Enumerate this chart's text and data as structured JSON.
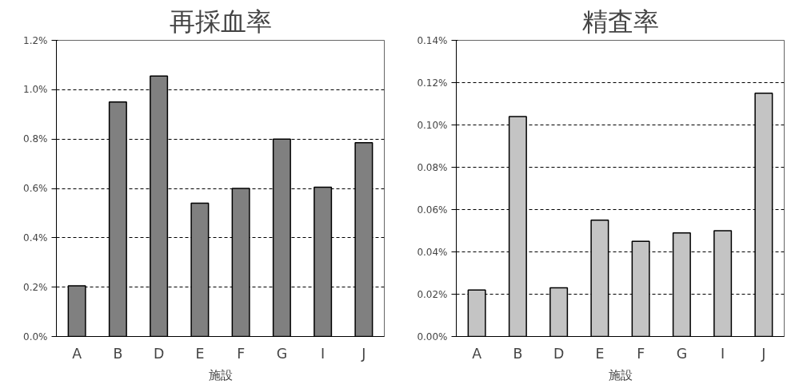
{
  "chart_data": [
    {
      "type": "bar",
      "title": "再採血率",
      "xlabel": "施設",
      "categories": [
        "A",
        "B",
        "D",
        "E",
        "F",
        "G",
        "I",
        "J"
      ],
      "values": [
        0.205,
        0.95,
        1.055,
        0.54,
        0.6,
        0.8,
        0.605,
        0.785
      ],
      "color": "#808080",
      "ylim": [
        0,
        1.2
      ],
      "yticks": [
        {
          "value": 0,
          "label": "0.0%"
        },
        {
          "value": 0.2,
          "label": "0.2%"
        },
        {
          "value": 0.4,
          "label": "0.4%"
        },
        {
          "value": 0.6,
          "label": "0.6%"
        },
        {
          "value": 0.8,
          "label": "0.8%"
        },
        {
          "value": 1.0,
          "label": "1.0%"
        },
        {
          "value": 1.2,
          "label": "1.2%"
        }
      ],
      "grid": "y"
    },
    {
      "type": "bar",
      "title": "精査率",
      "xlabel": "施設",
      "categories": [
        "A",
        "B",
        "D",
        "E",
        "F",
        "G",
        "I",
        "J"
      ],
      "values": [
        0.022,
        0.104,
        0.023,
        0.055,
        0.045,
        0.049,
        0.05,
        0.115
      ],
      "color": "#c4c4c4",
      "ylim": [
        0,
        0.14
      ],
      "yticks": [
        {
          "value": 0,
          "label": "0.00%"
        },
        {
          "value": 0.02,
          "label": "0.02%"
        },
        {
          "value": 0.04,
          "label": "0.04%"
        },
        {
          "value": 0.06,
          "label": "0.06%"
        },
        {
          "value": 0.08,
          "label": "0.08%"
        },
        {
          "value": 0.1,
          "label": "0.10%"
        },
        {
          "value": 0.12,
          "label": "0.12%"
        },
        {
          "value": 0.14,
          "label": "0.14%"
        }
      ],
      "grid": "y"
    }
  ]
}
